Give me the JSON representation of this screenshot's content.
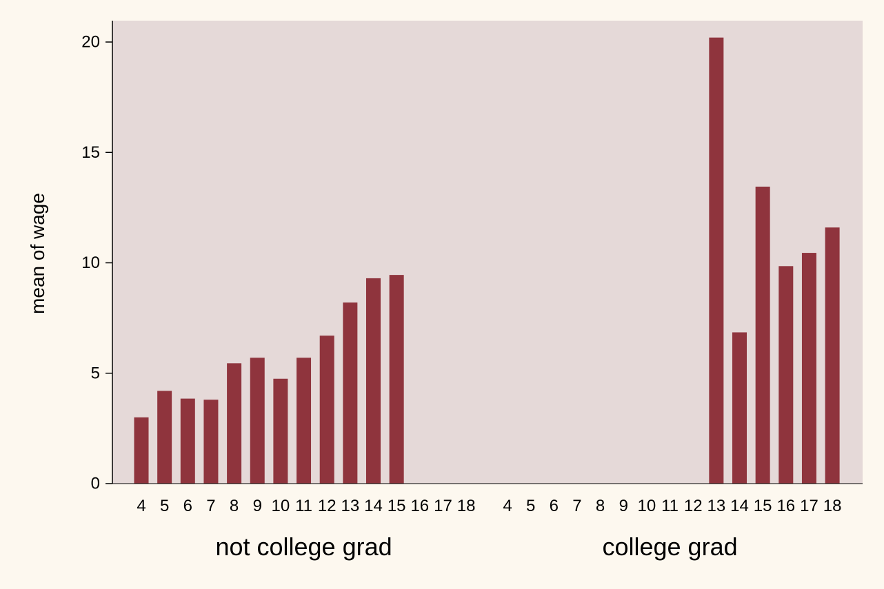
{
  "chart_data": {
    "type": "bar",
    "ylabel": "mean of wage",
    "ylim": [
      0,
      21
    ],
    "yticks": [
      0,
      5,
      10,
      15,
      20
    ],
    "grid": false,
    "colors": {
      "bar": "#8f343d",
      "plot_bg": "#e5d9d8",
      "page_bg": "#fdf8ef",
      "axis": "#000000"
    },
    "categories": [
      "4",
      "5",
      "6",
      "7",
      "8",
      "9",
      "10",
      "11",
      "12",
      "13",
      "14",
      "15",
      "16",
      "17",
      "18"
    ],
    "groups": [
      {
        "label": "not college grad",
        "values": [
          3.0,
          4.2,
          3.85,
          3.8,
          5.45,
          5.7,
          4.75,
          5.7,
          6.7,
          8.2,
          9.3,
          9.45,
          null,
          null,
          null
        ]
      },
      {
        "label": "college grad",
        "values": [
          null,
          null,
          null,
          null,
          null,
          null,
          null,
          null,
          null,
          20.2,
          6.85,
          13.45,
          9.85,
          10.45,
          11.6
        ]
      }
    ]
  }
}
